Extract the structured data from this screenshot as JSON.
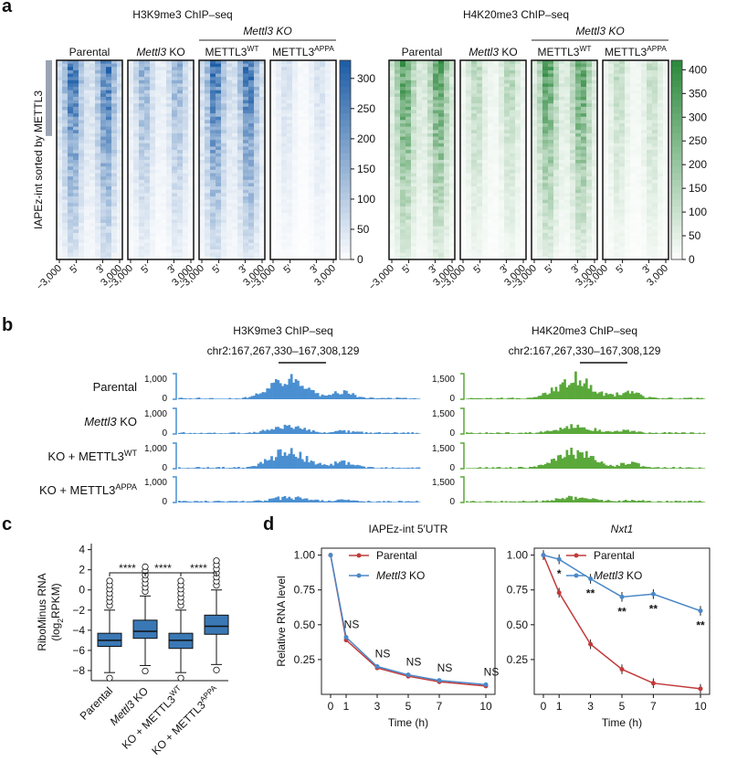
{
  "panels": {
    "a": "a",
    "b": "b",
    "c": "c",
    "d": "d"
  },
  "a": {
    "left": {
      "title": "H3K9me3 ChIP–seq",
      "color": "#1f5fa8",
      "scale": [
        0,
        50,
        100,
        150,
        200,
        250,
        300
      ]
    },
    "right": {
      "title": "H4K20me3 ChIP–seq",
      "color": "#2e8a3e",
      "scale": [
        0,
        50,
        100,
        150,
        200,
        250,
        300,
        350,
        400
      ]
    },
    "cols": [
      "Parental",
      "Mettl3 KO",
      "METTL3",
      "METTL3"
    ],
    "col_sup": [
      "",
      "",
      "WT",
      "APPA"
    ],
    "ko_header": "Mettl3 KO",
    "ylabel": "IAPEz-int sorted by METTL3",
    "xticks": [
      "−3,000",
      "5′",
      "3′",
      "3,000"
    ],
    "intensity": {
      "left": [
        1,
        0.55,
        1,
        0.22
      ],
      "right": [
        0.95,
        0.42,
        0.9,
        0.35
      ]
    }
  },
  "b": {
    "left": {
      "title": "H3K9me3 ChIP–seq",
      "coord": "chr2:167,267,330–167,308,129",
      "scale_top": "1,000",
      "scale_bot": "0",
      "color": "#4a8fd1"
    },
    "right": {
      "title": "H4K20me3 ChIP–seq",
      "coord": "chr2:167,267,330–167,308,129",
      "scale_top": "1,500",
      "scale_bot": "0",
      "color": "#5aa83a"
    },
    "rows": [
      {
        "label": "Parental",
        "sup": "",
        "ital": false,
        "strength": 1.0
      },
      {
        "label": "Mettl3 KO",
        "sup": "",
        "ital": true,
        "strength": 0.35
      },
      {
        "label": "KO + METTL3",
        "sup": "WT",
        "ital": false,
        "strength": 0.85
      },
      {
        "label": "KO + METTL3",
        "sup": "APPA",
        "ital": false,
        "strength": 0.22
      }
    ]
  },
  "c": {
    "ylabel1": "RiboMinus RNA",
    "ylabel2": "(log",
    "ylabel_sub": "2",
    "ylabel3": "RPKM)",
    "yticks": [
      "4",
      "2",
      "0",
      "−2",
      "−4",
      "−6",
      "−8"
    ],
    "sig": "****",
    "groups": [
      {
        "label": "Parental",
        "sup": "",
        "q1": -5.6,
        "med": -5.0,
        "q3": -4.3,
        "wlo": -8.2,
        "whi": -2.0
      },
      {
        "label": "Mettl3 KO",
        "sup": "",
        "q1": -4.8,
        "med": -4.1,
        "q3": -3.0,
        "wlo": -7.5,
        "whi": -0.6
      },
      {
        "label": "KO + METTL3",
        "sup": "WT",
        "q1": -5.8,
        "med": -5.0,
        "q3": -4.3,
        "wlo": -8.2,
        "whi": -2.0
      },
      {
        "label": "KO + METTL3",
        "sup": "APPA",
        "q1": -4.4,
        "med": -3.6,
        "q3": -2.5,
        "wlo": -7.4,
        "whi": 0.0
      }
    ]
  },
  "d": {
    "ylabel": "Relative RNA level",
    "xlabel": "Time (h)",
    "legend": [
      "Parental",
      "Mettl3 KO"
    ],
    "colors": {
      "parental": "#c23a3a",
      "ko": "#4a88c8"
    },
    "left": {
      "title": "IAPEz-int 5′UTR",
      "title_italic": false,
      "x": [
        0,
        1,
        3,
        5,
        7,
        10
      ],
      "parental": [
        1.0,
        0.39,
        0.19,
        0.13,
        0.09,
        0.06
      ],
      "ko": [
        1.0,
        0.41,
        0.2,
        0.14,
        0.1,
        0.07
      ],
      "ann": [
        "",
        "NS",
        "NS",
        "NS",
        "NS",
        "NS"
      ],
      "yticks": [
        "0.25",
        "0.50",
        "0.75",
        "1.00"
      ]
    },
    "right": {
      "title": "Nxt1",
      "title_italic": true,
      "x": [
        0,
        1,
        3,
        5,
        7,
        10
      ],
      "parental": [
        1.0,
        0.73,
        0.36,
        0.18,
        0.08,
        0.04
      ],
      "ko": [
        1.0,
        0.97,
        0.83,
        0.7,
        0.72,
        0.6
      ],
      "ann": [
        "",
        "*",
        "**",
        "**",
        "**",
        "**"
      ],
      "yticks": [
        "0.25",
        "0.50",
        "0.75",
        "1.00"
      ]
    }
  }
}
